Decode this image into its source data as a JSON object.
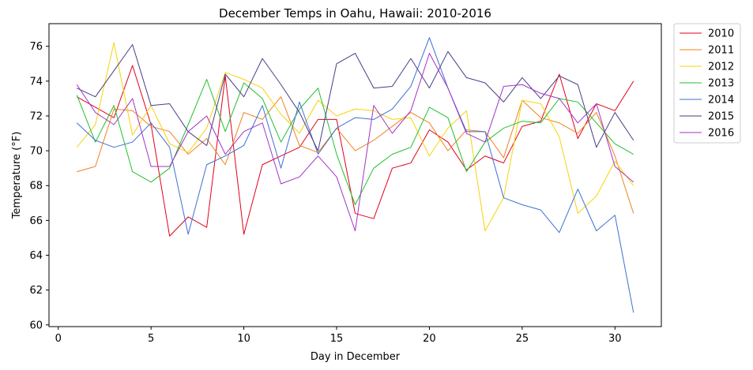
{
  "chart_data": {
    "type": "line",
    "title": "December Temps in Oahu, Hawaii: 2010-2016",
    "xlabel": "Day in December",
    "ylabel": "Temperature (°F)",
    "xlim": [
      -0.5,
      32.5
    ],
    "ylim": [
      59.9,
      77.3
    ],
    "xticks": [
      0,
      5,
      10,
      15,
      20,
      25,
      30
    ],
    "yticks": [
      60,
      62,
      64,
      66,
      68,
      70,
      72,
      74,
      76
    ],
    "grid": false,
    "legend_position": "outside-top-right",
    "x": [
      1,
      2,
      3,
      4,
      5,
      6,
      7,
      8,
      9,
      10,
      11,
      12,
      13,
      14,
      15,
      16,
      17,
      18,
      19,
      20,
      21,
      22,
      23,
      24,
      25,
      26,
      27,
      28,
      29,
      30,
      31
    ],
    "series": [
      {
        "name": "2010",
        "color": "#e3001b",
        "values": [
          73.1,
          72.5,
          71.9,
          74.9,
          71.5,
          65.1,
          66.2,
          65.6,
          74.3,
          65.2,
          69.2,
          69.7,
          70.2,
          71.8,
          71.8,
          66.4,
          66.1,
          69.0,
          69.3,
          71.2,
          70.5,
          68.9,
          69.7,
          69.3,
          71.4,
          71.7,
          74.4,
          70.7,
          72.7,
          72.3,
          74.0
        ]
      },
      {
        "name": "2011",
        "color": "#f0831e",
        "values": [
          68.8,
          69.1,
          72.4,
          72.3,
          71.4,
          71.1,
          69.8,
          70.7,
          69.2,
          72.2,
          71.8,
          73.1,
          70.3,
          69.9,
          71.3,
          70.0,
          70.6,
          71.4,
          72.2,
          71.6,
          70.0,
          71.2,
          71.1,
          69.6,
          72.9,
          71.9,
          71.6,
          71.0,
          72.2,
          69.7,
          66.4
        ]
      },
      {
        "name": "2012",
        "color": "#f6d30d",
        "values": [
          70.2,
          71.5,
          76.2,
          70.9,
          72.6,
          70.4,
          69.9,
          71.3,
          74.5,
          74.1,
          73.6,
          72.1,
          71.0,
          72.9,
          72.0,
          72.4,
          72.3,
          71.8,
          71.9,
          69.7,
          71.3,
          72.3,
          65.4,
          67.3,
          72.9,
          72.7,
          70.8,
          66.4,
          67.4,
          69.4,
          68.0
        ]
      },
      {
        "name": "2013",
        "color": "#22c12b",
        "values": [
          73.2,
          70.5,
          72.6,
          68.8,
          68.2,
          69.0,
          71.5,
          74.1,
          71.1,
          73.9,
          73.0,
          70.5,
          72.4,
          73.6,
          69.8,
          66.9,
          69.0,
          69.8,
          70.2,
          72.5,
          71.9,
          68.8,
          70.5,
          71.3,
          71.7,
          71.6,
          73.0,
          72.8,
          71.6,
          70.4,
          69.8
        ]
      },
      {
        "name": "2014",
        "color": "#3f6fd4",
        "values": [
          71.6,
          70.6,
          70.2,
          70.5,
          71.6,
          70.2,
          65.2,
          69.2,
          69.7,
          70.3,
          72.6,
          69.0,
          72.8,
          69.8,
          71.3,
          71.9,
          71.8,
          72.4,
          73.7,
          76.5,
          73.6,
          71.1,
          71.1,
          67.3,
          66.9,
          66.6,
          65.3,
          67.8,
          65.4,
          66.3,
          60.7
        ]
      },
      {
        "name": "2015",
        "color": "#4b3d86",
        "values": [
          73.6,
          73.1,
          74.6,
          76.1,
          72.6,
          72.7,
          71.1,
          70.3,
          74.4,
          73.1,
          75.3,
          73.8,
          72.2,
          70.0,
          75.0,
          75.6,
          73.6,
          73.7,
          75.3,
          73.6,
          75.7,
          74.2,
          73.9,
          72.8,
          74.2,
          73.0,
          74.3,
          73.8,
          70.2,
          72.2,
          70.6
        ]
      },
      {
        "name": "2016",
        "color": "#a333c8",
        "values": [
          73.8,
          72.2,
          71.5,
          73.0,
          69.1,
          69.1,
          71.1,
          72.0,
          69.8,
          71.1,
          71.6,
          68.1,
          68.5,
          69.7,
          68.5,
          65.4,
          72.6,
          71.0,
          72.3,
          75.6,
          73.6,
          71.0,
          70.5,
          73.7,
          73.8,
          73.3,
          73.0,
          71.6,
          72.7,
          69.1,
          68.2
        ]
      }
    ]
  }
}
